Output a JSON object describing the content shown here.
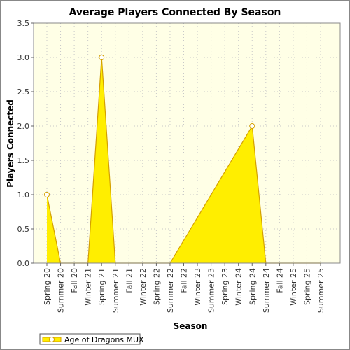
{
  "chart_data": {
    "type": "area",
    "title": "Average Players Connected By Season",
    "xlabel": "Season",
    "ylabel": "Players Connected",
    "ylim": [
      0,
      3.5
    ],
    "yticks": [
      "0.0",
      "0.5",
      "1.0",
      "1.5",
      "2.0",
      "2.5",
      "3.0",
      "3.5"
    ],
    "grid": true,
    "legend_position": "bottom-left",
    "categories": [
      "Spring 20",
      "Summer 20",
      "Fall 20",
      "Winter 21",
      "Spring 21",
      "Summer 21",
      "Fall 21",
      "Winter 22",
      "Spring 22",
      "Summer 22",
      "Fall 22",
      "Winter 23",
      "Summer 23",
      "Spring 23",
      "Winter 24",
      "Spring 24",
      "Summer 24",
      "Fall 24",
      "Winter 25",
      "Spring 25",
      "Summer 25"
    ],
    "series": [
      {
        "name": "Age of Dragons MUX",
        "fill_color": "#ffee00",
        "line_color": "#d4a000",
        "marked_points": [
          0,
          4,
          15
        ],
        "values": [
          1.0,
          0,
          0,
          0,
          3.0,
          0,
          0,
          0,
          0,
          0,
          null,
          null,
          null,
          null,
          null,
          2.0,
          0,
          0,
          0,
          0,
          0
        ]
      }
    ]
  }
}
